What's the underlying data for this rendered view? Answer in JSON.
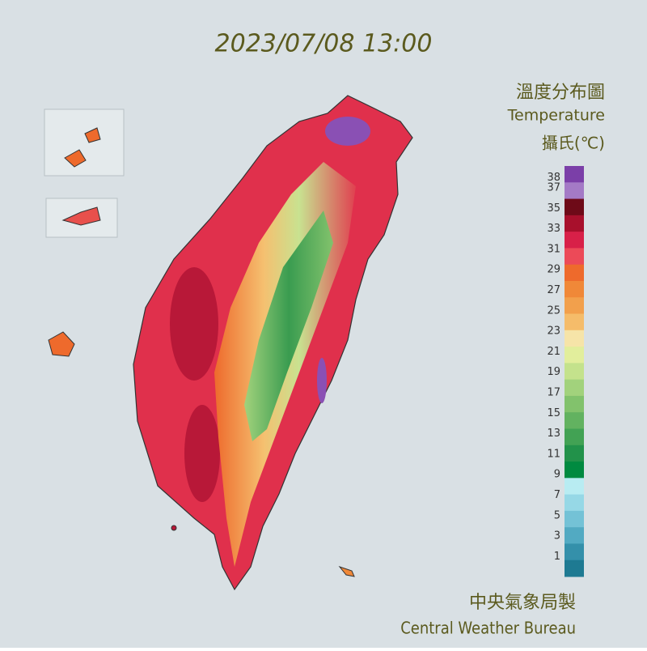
{
  "header": {
    "timestamp": "2023/07/08 13:00"
  },
  "legend": {
    "title_zh": "溫度分布圖",
    "title_en": "Temperature",
    "unit": "攝氏(℃)",
    "ticks": [
      38,
      37,
      35,
      33,
      31,
      29,
      27,
      25,
      23,
      21,
      19,
      17,
      15,
      13,
      11,
      9,
      7,
      5,
      3,
      1
    ],
    "colors": [
      "#7b3fa8",
      "#a47ac6",
      "#6e0a18",
      "#a8102c",
      "#d82048",
      "#ec4a58",
      "#ee6a2c",
      "#f08838",
      "#f2a04c",
      "#f5bc6a",
      "#f6e4a8",
      "#e2ee9c",
      "#c4e28c",
      "#a2d27c",
      "#82c26c",
      "#62b260",
      "#42a254",
      "#22924a",
      "#008a40",
      "#b8ecf2",
      "#96d8e6",
      "#74c2d6",
      "#52aac2",
      "#3490aa",
      "#1e7a92"
    ]
  },
  "footer": {
    "agency_zh": "中央氣象局製",
    "agency_en": "Central Weather Bureau"
  }
}
